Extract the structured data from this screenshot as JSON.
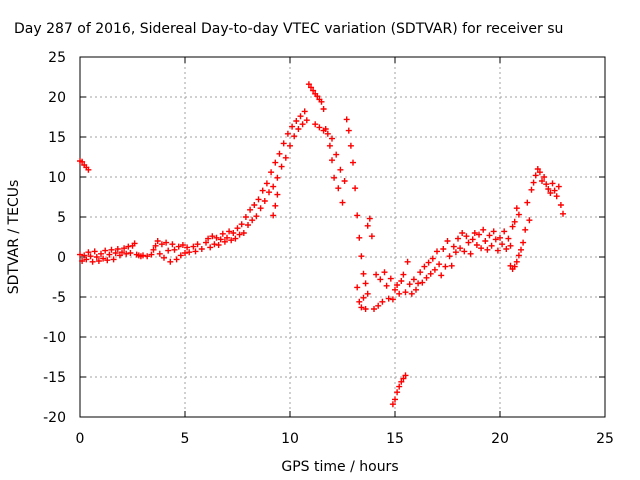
{
  "chart_data": {
    "type": "scatter",
    "title": "Day 287 of 2016, Sidereal Day-to-day VTEC variation (SDTVAR) for receiver su",
    "xlabel": "GPS time / hours",
    "ylabel": "SDTVAR / TECUs",
    "xlim": [
      0,
      25
    ],
    "ylim": [
      -20,
      25
    ],
    "xticks": [
      0,
      5,
      10,
      15,
      20,
      25
    ],
    "yticks": [
      -20,
      -15,
      -10,
      -5,
      0,
      5,
      10,
      15,
      20,
      25
    ],
    "grid": true,
    "marker": "+",
    "color": "#ff0000",
    "series": [
      {
        "points": [
          [
            0,
            12
          ],
          [
            0.1,
            11.9
          ],
          [
            0.2,
            11.5
          ],
          [
            0.3,
            11.2
          ],
          [
            0.4,
            10.9
          ],
          [
            0,
            0.3
          ],
          [
            0.1,
            -0.5
          ],
          [
            0.2,
            0.2
          ],
          [
            0.3,
            -0.3
          ],
          [
            0.4,
            0.6
          ],
          [
            0.5,
            0.1
          ],
          [
            0.6,
            -0.6
          ],
          [
            0.7,
            0.7
          ],
          [
            0.8,
            0
          ],
          [
            0.9,
            -0.5
          ],
          [
            1.0,
            0.4
          ],
          [
            1.1,
            -0.2
          ],
          [
            1.2,
            0.8
          ],
          [
            1.3,
            -0.4
          ],
          [
            1.4,
            0.3
          ],
          [
            1.5,
            0.9
          ],
          [
            1.6,
            -0.3
          ],
          [
            1.7,
            0.5
          ],
          [
            1.8,
            1.0
          ],
          [
            1.9,
            0.2
          ],
          [
            2.0,
            0.6
          ],
          [
            2.1,
            1.1
          ],
          [
            2.2,
            0.4
          ],
          [
            2.3,
            1.3
          ],
          [
            2.4,
            0.5
          ],
          [
            2.5,
            1.4
          ],
          [
            2.6,
            1.7
          ],
          [
            2.7,
            0.3
          ],
          [
            2.8,
            0.2
          ],
          [
            2.9,
            0.1
          ],
          [
            3.0,
            0.2
          ],
          [
            3.2,
            0.1
          ],
          [
            3.4,
            0.3
          ],
          [
            3.5,
            0.9
          ],
          [
            3.6,
            1.4
          ],
          [
            3.7,
            2.0
          ],
          [
            3.8,
            0.4
          ],
          [
            3.9,
            1.6
          ],
          [
            4.0,
            -0.1
          ],
          [
            4.1,
            1.8
          ],
          [
            4.2,
            0.8
          ],
          [
            4.3,
            -0.6
          ],
          [
            4.4,
            1.6
          ],
          [
            4.5,
            0.9
          ],
          [
            4.6,
            -0.3
          ],
          [
            4.7,
            1.3
          ],
          [
            4.8,
            0.2
          ],
          [
            4.9,
            1.5
          ],
          [
            5.0,
            0.5
          ],
          [
            5.1,
            1.2
          ],
          [
            5.2,
            0.6
          ],
          [
            5.4,
            1.3
          ],
          [
            5.5,
            0.7
          ],
          [
            5.6,
            1.6
          ],
          [
            5.8,
            1.0
          ],
          [
            6.0,
            1.8
          ],
          [
            6.1,
            2.3
          ],
          [
            6.2,
            1.2
          ],
          [
            6.3,
            2.6
          ],
          [
            6.4,
            1.6
          ],
          [
            6.5,
            2.4
          ],
          [
            6.6,
            1.5
          ],
          [
            6.7,
            2.2
          ],
          [
            6.8,
            2.9
          ],
          [
            6.9,
            1.9
          ],
          [
            7.0,
            2.4
          ],
          [
            7.1,
            3.2
          ],
          [
            7.2,
            2.1
          ],
          [
            7.3,
            3.0
          ],
          [
            7.4,
            2.3
          ],
          [
            7.5,
            3.6
          ],
          [
            7.6,
            2.8
          ],
          [
            7.7,
            4.1
          ],
          [
            7.8,
            3.0
          ],
          [
            7.9,
            5.0
          ],
          [
            8.0,
            4.0
          ],
          [
            8.1,
            5.9
          ],
          [
            8.2,
            4.6
          ],
          [
            8.3,
            6.5
          ],
          [
            8.4,
            5.1
          ],
          [
            8.5,
            7.2
          ],
          [
            8.6,
            6.1
          ],
          [
            8.7,
            8.3
          ],
          [
            8.8,
            7.0
          ],
          [
            8.9,
            9.2
          ],
          [
            9.0,
            8.1
          ],
          [
            9.1,
            10.6
          ],
          [
            9.2,
            8.8
          ],
          [
            9.3,
            11.8
          ],
          [
            9.4,
            9.9
          ],
          [
            9.2,
            5.2
          ],
          [
            9.3,
            6.4
          ],
          [
            9.4,
            7.8
          ],
          [
            9.5,
            12.9
          ],
          [
            9.6,
            11.3
          ],
          [
            9.7,
            14.2
          ],
          [
            9.8,
            12.4
          ],
          [
            9.9,
            15.4
          ],
          [
            10.0,
            13.9
          ],
          [
            10.1,
            16.3
          ],
          [
            10.2,
            15.1
          ],
          [
            10.3,
            17.0
          ],
          [
            10.4,
            16.0
          ],
          [
            10.5,
            17.6
          ],
          [
            10.6,
            16.6
          ],
          [
            10.7,
            18.2
          ],
          [
            10.8,
            17.1
          ],
          [
            10.9,
            21.6
          ],
          [
            11.0,
            21.2
          ],
          [
            11.1,
            20.8
          ],
          [
            11.2,
            20.4
          ],
          [
            11.3,
            20.1
          ],
          [
            11.4,
            19.7
          ],
          [
            11.5,
            19.4
          ],
          [
            11.6,
            18.5
          ],
          [
            11.2,
            16.6
          ],
          [
            11.4,
            16.2
          ],
          [
            11.6,
            15.8
          ],
          [
            11.7,
            16.0
          ],
          [
            11.8,
            15.4
          ],
          [
            11.9,
            13.9
          ],
          [
            12.0,
            12.1
          ],
          [
            12.1,
            9.9
          ],
          [
            12.0,
            14.8
          ],
          [
            12.2,
            12.8
          ],
          [
            12.3,
            8.6
          ],
          [
            12.4,
            10.9
          ],
          [
            12.5,
            6.8
          ],
          [
            12.6,
            9.5
          ],
          [
            12.7,
            17.2
          ],
          [
            12.8,
            15.8
          ],
          [
            12.9,
            13.9
          ],
          [
            13.0,
            11.8
          ],
          [
            13.1,
            8.6
          ],
          [
            13.2,
            5.2
          ],
          [
            13.3,
            2.4
          ],
          [
            13.4,
            0.1
          ],
          [
            13.5,
            -2.1
          ],
          [
            13.6,
            -3.3
          ],
          [
            13.7,
            -4.6
          ],
          [
            13.2,
            -3.8
          ],
          [
            13.3,
            -5.6
          ],
          [
            13.4,
            -6.3
          ],
          [
            13.5,
            -5.1
          ],
          [
            13.6,
            -6.5
          ],
          [
            13.7,
            3.9
          ],
          [
            13.8,
            4.8
          ],
          [
            13.9,
            2.6
          ],
          [
            14.0,
            -6.5
          ],
          [
            14.1,
            -2.2
          ],
          [
            14.2,
            -6.1
          ],
          [
            14.3,
            -2.8
          ],
          [
            14.4,
            -5.6
          ],
          [
            14.5,
            -1.9
          ],
          [
            14.6,
            -3.6
          ],
          [
            14.7,
            -5.2
          ],
          [
            14.8,
            -2.7
          ],
          [
            14.9,
            -5.3
          ],
          [
            15.0,
            -4.1
          ],
          [
            15.1,
            -3.5
          ],
          [
            15.2,
            -4.6
          ],
          [
            15.3,
            -3.0
          ],
          [
            15.4,
            -2.2
          ],
          [
            15.5,
            -4.4
          ],
          [
            15.6,
            -0.6
          ],
          [
            15.7,
            -3.4
          ],
          [
            15.8,
            -4.6
          ],
          [
            15.9,
            -2.8
          ],
          [
            16.0,
            -4.1
          ],
          [
            16.1,
            -3.3
          ],
          [
            16.2,
            -1.9
          ],
          [
            16.3,
            -3.2
          ],
          [
            16.4,
            -1.2
          ],
          [
            16.5,
            -2.6
          ],
          [
            16.6,
            -0.7
          ],
          [
            16.7,
            -2.1
          ],
          [
            16.8,
            -0.2
          ],
          [
            16.9,
            -1.6
          ],
          [
            17.0,
            0.7
          ],
          [
            17.1,
            -0.9
          ],
          [
            17.2,
            -2.3
          ],
          [
            17.3,
            1.0
          ],
          [
            17.4,
            -1.2
          ],
          [
            17.5,
            2.0
          ],
          [
            17.6,
            0.1
          ],
          [
            17.7,
            -1.1
          ],
          [
            17.8,
            1.3
          ],
          [
            17.9,
            0.6
          ],
          [
            18.0,
            2.3
          ],
          [
            18.1,
            1.1
          ],
          [
            18.2,
            3.0
          ],
          [
            18.3,
            0.7
          ],
          [
            18.4,
            2.6
          ],
          [
            18.5,
            1.8
          ],
          [
            18.6,
            0.4
          ],
          [
            18.7,
            2.2
          ],
          [
            18.8,
            3.0
          ],
          [
            18.9,
            1.5
          ],
          [
            19.0,
            2.8
          ],
          [
            19.1,
            1.1
          ],
          [
            19.2,
            3.4
          ],
          [
            19.3,
            2.0
          ],
          [
            19.4,
            0.9
          ],
          [
            19.5,
            2.7
          ],
          [
            19.6,
            1.4
          ],
          [
            19.7,
            3.2
          ],
          [
            19.8,
            2.2
          ],
          [
            19.9,
            0.8
          ],
          [
            20.0,
            2.4
          ],
          [
            20.1,
            1.6
          ],
          [
            20.2,
            3.2
          ],
          [
            20.3,
            1.0
          ],
          [
            20.4,
            2.3
          ],
          [
            20.5,
            1.4
          ],
          [
            20.6,
            3.8
          ],
          [
            20.7,
            4.4
          ],
          [
            20.8,
            6.1
          ],
          [
            20.9,
            5.3
          ],
          [
            20.5,
            -1.1
          ],
          [
            20.6,
            -1.5
          ],
          [
            20.7,
            -1.2
          ],
          [
            20.8,
            -0.6
          ],
          [
            20.9,
            0.2
          ],
          [
            21.0,
            0.9
          ],
          [
            21.1,
            1.8
          ],
          [
            21.2,
            3.4
          ],
          [
            21.3,
            6.8
          ],
          [
            21.4,
            4.6
          ],
          [
            21.5,
            8.4
          ],
          [
            21.6,
            9.3
          ],
          [
            21.7,
            10.2
          ],
          [
            21.8,
            11.0
          ],
          [
            21.9,
            10.6
          ],
          [
            22.0,
            9.5
          ],
          [
            22.1,
            10.0
          ],
          [
            22.2,
            9.1
          ],
          [
            22.3,
            8.5
          ],
          [
            22.4,
            8.0
          ],
          [
            22.5,
            9.2
          ],
          [
            22.6,
            8.3
          ],
          [
            22.7,
            7.6
          ],
          [
            22.8,
            8.8
          ],
          [
            22.9,
            6.5
          ],
          [
            23.0,
            5.4
          ],
          [
            14.9,
            -18.4
          ],
          [
            15.0,
            -17.8
          ],
          [
            15.1,
            -16.9
          ],
          [
            15.2,
            -16.2
          ],
          [
            15.3,
            -15.6
          ],
          [
            15.4,
            -15.2
          ],
          [
            15.5,
            -14.8
          ]
        ]
      }
    ]
  }
}
